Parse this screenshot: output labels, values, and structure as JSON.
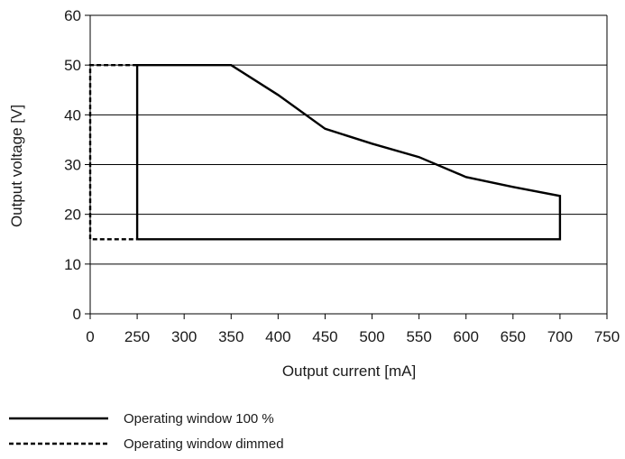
{
  "chart_data": {
    "type": "line",
    "xlabel": "Output current [mA]",
    "ylabel": "Output voltage [V]",
    "xlim": [
      0,
      750
    ],
    "ylim": [
      0,
      60
    ],
    "x_ticks": [
      "0",
      "250",
      "300",
      "350",
      "400",
      "450",
      "500",
      "550",
      "600",
      "650",
      "700",
      "750"
    ],
    "y_ticks": [
      "0",
      "10",
      "20",
      "30",
      "40",
      "50",
      "60"
    ],
    "grid": "horizontal",
    "legend": "bottom-left",
    "series": [
      {
        "name": "Operating window 100 %",
        "style": "solid",
        "color": "#000000",
        "points": [
          [
            250,
            15
          ],
          [
            250,
            50
          ],
          [
            350,
            50
          ],
          [
            400,
            44
          ],
          [
            450,
            37.2
          ],
          [
            500,
            34.2
          ],
          [
            550,
            31.5
          ],
          [
            600,
            27.5
          ],
          [
            650,
            25.5
          ],
          [
            700,
            23.7
          ],
          [
            700,
            15
          ],
          [
            250,
            15
          ]
        ]
      },
      {
        "name": "Operating window dimmed",
        "style": "dashed",
        "color": "#000000",
        "points": [
          [
            250,
            50
          ],
          [
            0,
            50
          ],
          [
            0,
            15
          ],
          [
            250,
            15
          ]
        ]
      }
    ]
  }
}
